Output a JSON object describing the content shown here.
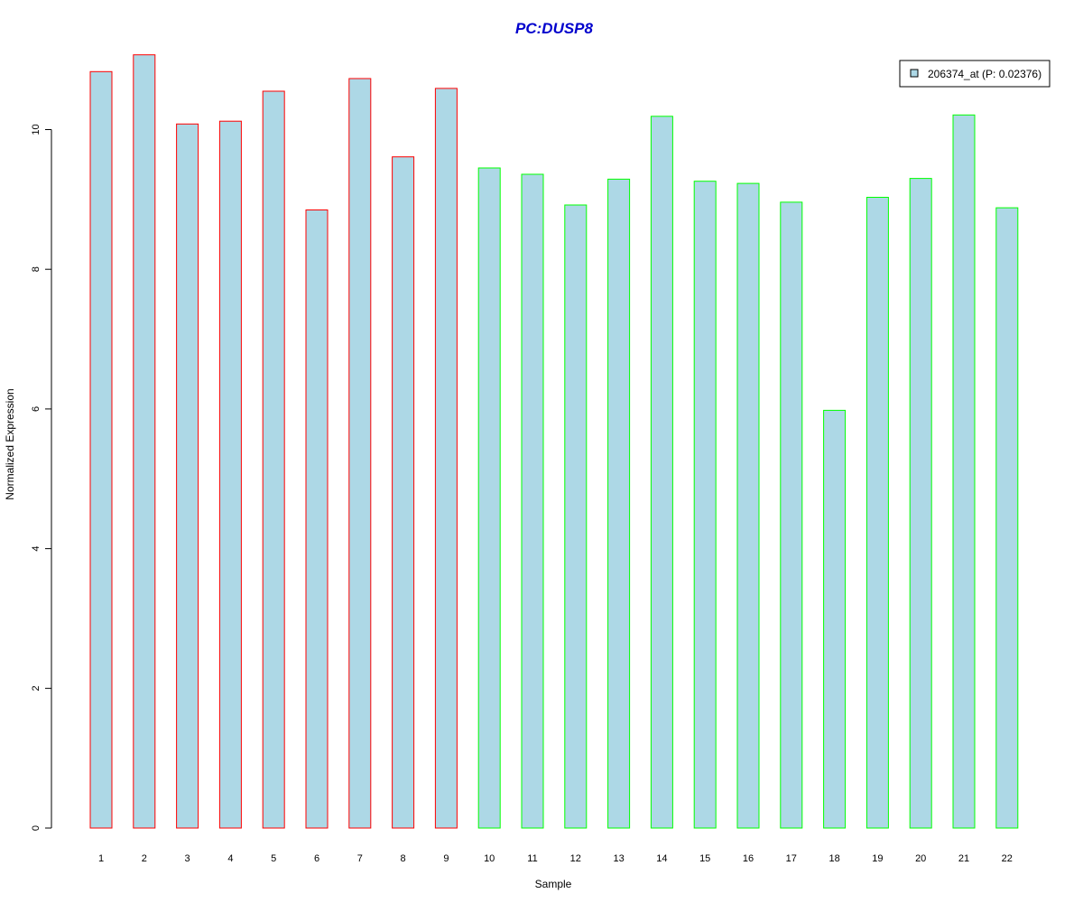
{
  "chart_data": {
    "type": "bar",
    "title": "PC:DUSP8",
    "xlabel": "Sample",
    "ylabel": "Normalized Expression",
    "categories": [
      "1",
      "2",
      "3",
      "4",
      "5",
      "6",
      "7",
      "8",
      "9",
      "10",
      "11",
      "12",
      "13",
      "14",
      "15",
      "16",
      "17",
      "18",
      "19",
      "20",
      "21",
      "22"
    ],
    "values": [
      10.83,
      11.07,
      10.08,
      10.12,
      10.55,
      8.85,
      10.73,
      9.61,
      10.59,
      9.45,
      9.36,
      8.92,
      9.29,
      10.19,
      9.26,
      9.23,
      8.96,
      5.98,
      9.03,
      9.3,
      10.21,
      8.88
    ],
    "groups": [
      "red",
      "red",
      "red",
      "red",
      "red",
      "red",
      "red",
      "red",
      "red",
      "green",
      "green",
      "green",
      "green",
      "green",
      "green",
      "green",
      "green",
      "green",
      "green",
      "green",
      "green",
      "green"
    ],
    "yticks": [
      0,
      2,
      4,
      6,
      8,
      10
    ],
    "ylim": [
      0,
      11.1
    ],
    "grid": false,
    "legend": {
      "position": "top-right",
      "entries": [
        {
          "label": "206374_at (P: 0.02376)",
          "color": "#ADD8E6"
        }
      ]
    },
    "colors": {
      "bar_fill": "#ADD8E6",
      "border_red": "#FF0000",
      "border_green": "#00FF00",
      "title": "#0000CD",
      "axis": "#000000"
    }
  }
}
